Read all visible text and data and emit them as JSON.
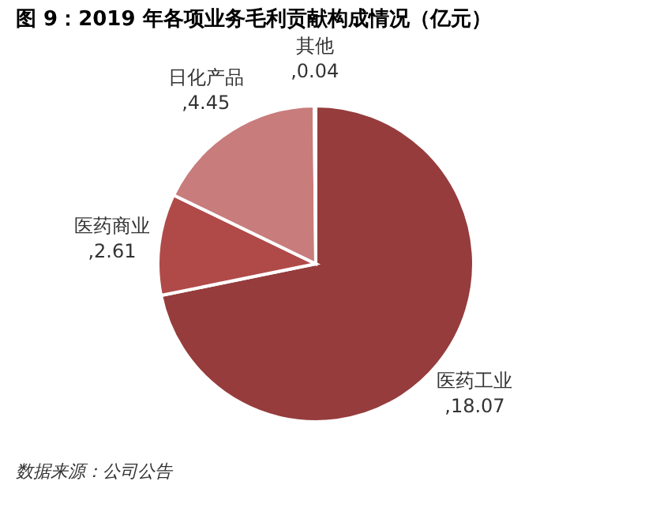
{
  "chart_data": {
    "type": "pie",
    "title": "图 9：2019 年各项业务毛利贡献构成情况（亿元）",
    "categories": [
      "医药工业",
      "医药商业",
      "日化产品",
      "其他"
    ],
    "values": [
      18.07,
      2.61,
      4.45,
      0.04
    ],
    "colors": [
      "#963c3c",
      "#b04a48",
      "#c97c7c",
      "#e0b0b0"
    ],
    "value_labels": [
      ",18.07",
      ",2.61",
      ",4.45",
      ",0.04"
    ],
    "legend": false,
    "annotations": [
      "数据来源：公司公告"
    ]
  }
}
